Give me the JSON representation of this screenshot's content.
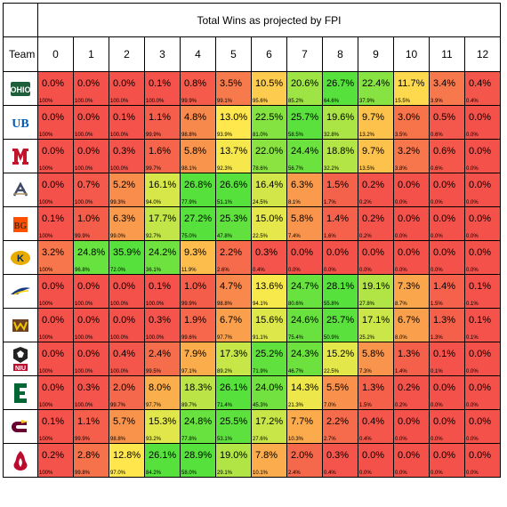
{
  "title": "Total Wins as projected by FPI",
  "team_header": "Team",
  "win_columns": [
    "0",
    "1",
    "2",
    "3",
    "4",
    "5",
    "6",
    "7",
    "8",
    "9",
    "10",
    "11",
    "12"
  ],
  "teams": [
    {
      "name": "Ohio",
      "logo": "ohio-logo-icon",
      "probs": [
        "0.0%",
        "0.0%",
        "0.0%",
        "0.1%",
        "0.8%",
        "3.5%",
        "10.5%",
        "20.6%",
        "26.7%",
        "22.4%",
        "11.7%",
        "3.4%",
        "0.4%"
      ],
      "cum": [
        "100%",
        "100.0%",
        "100.0%",
        "100.0%",
        "99.9%",
        "99.1%",
        "95.6%",
        "85.2%",
        "64.6%",
        "37.9%",
        "15.5%",
        "3.9%",
        "0.4%"
      ]
    },
    {
      "name": "Buffalo",
      "logo": "buffalo-logo-icon",
      "probs": [
        "0.0%",
        "0.0%",
        "0.1%",
        "1.1%",
        "4.8%",
        "13.0%",
        "22.5%",
        "25.7%",
        "19.6%",
        "9.7%",
        "3.0%",
        "0.5%",
        "0.0%"
      ],
      "cum": [
        "100%",
        "100.0%",
        "100.0%",
        "99.9%",
        "98.8%",
        "93.9%",
        "81.0%",
        "58.5%",
        "32.8%",
        "13.2%",
        "3.5%",
        "0.6%",
        "0.0%"
      ]
    },
    {
      "name": "Miami (OH)",
      "logo": "miami-logo-icon",
      "probs": [
        "0.0%",
        "0.0%",
        "0.3%",
        "1.6%",
        "5.8%",
        "13.7%",
        "22.0%",
        "24.4%",
        "18.8%",
        "9.7%",
        "3.2%",
        "0.6%",
        "0.0%"
      ],
      "cum": [
        "100%",
        "100.0%",
        "100.0%",
        "99.7%",
        "98.1%",
        "92.3%",
        "78.6%",
        "56.7%",
        "32.2%",
        "13.5%",
        "3.8%",
        "0.6%",
        "0.0%"
      ]
    },
    {
      "name": "Akron",
      "logo": "akron-logo-icon",
      "probs": [
        "0.0%",
        "0.7%",
        "5.2%",
        "16.1%",
        "26.8%",
        "26.6%",
        "16.4%",
        "6.3%",
        "1.5%",
        "0.2%",
        "0.0%",
        "0.0%",
        "0.0%"
      ],
      "cum": [
        "100%",
        "100.0%",
        "99.3%",
        "94.0%",
        "77.9%",
        "51.1%",
        "24.5%",
        "8.1%",
        "1.7%",
        "0.2%",
        "0.0%",
        "0.0%",
        "0.0%"
      ]
    },
    {
      "name": "Bowling Green",
      "logo": "bowling-green-logo-icon",
      "probs": [
        "0.1%",
        "1.0%",
        "6.3%",
        "17.7%",
        "27.2%",
        "25.3%",
        "15.0%",
        "5.8%",
        "1.4%",
        "0.2%",
        "0.0%",
        "0.0%",
        "0.0%"
      ],
      "cum": [
        "100%",
        "99.9%",
        "99.0%",
        "92.7%",
        "75.0%",
        "47.8%",
        "22.5%",
        "7.4%",
        "1.6%",
        "0.2%",
        "0.0%",
        "0.0%",
        "0.0%"
      ]
    },
    {
      "name": "Kent State",
      "logo": "kent-state-logo-icon",
      "probs": [
        "3.2%",
        "24.8%",
        "35.9%",
        "24.2%",
        "9.3%",
        "2.2%",
        "0.3%",
        "0.0%",
        "0.0%",
        "0.0%",
        "0.0%",
        "0.0%",
        "0.0%"
      ],
      "cum": [
        "100%",
        "96.8%",
        "72.0%",
        "36.1%",
        "11.9%",
        "2.6%",
        "0.4%",
        "0.0%",
        "0.0%",
        "0.0%",
        "0.0%",
        "0.0%",
        "0.0%"
      ]
    },
    {
      "name": "Toledo",
      "logo": "toledo-logo-icon",
      "probs": [
        "0.0%",
        "0.0%",
        "0.0%",
        "0.1%",
        "1.0%",
        "4.7%",
        "13.6%",
        "24.7%",
        "28.1%",
        "19.1%",
        "7.3%",
        "1.4%",
        "0.1%"
      ],
      "cum": [
        "100%",
        "100.0%",
        "100.0%",
        "100.0%",
        "99.9%",
        "98.8%",
        "94.1%",
        "80.6%",
        "55.8%",
        "27.8%",
        "8.7%",
        "1.5%",
        "0.1%"
      ]
    },
    {
      "name": "Western Michigan",
      "logo": "western-michigan-logo-icon",
      "probs": [
        "0.0%",
        "0.0%",
        "0.0%",
        "0.3%",
        "1.9%",
        "6.7%",
        "15.6%",
        "24.6%",
        "25.7%",
        "17.1%",
        "6.7%",
        "1.3%",
        "0.1%"
      ],
      "cum": [
        "100%",
        "100.0%",
        "100.0%",
        "100.0%",
        "99.6%",
        "97.7%",
        "91.1%",
        "75.4%",
        "50.9%",
        "25.2%",
        "8.0%",
        "1.3%",
        "0.1%"
      ]
    },
    {
      "name": "Northern Illinois",
      "logo": "northern-illinois-logo-icon",
      "probs": [
        "0.0%",
        "0.0%",
        "0.4%",
        "2.4%",
        "7.9%",
        "17.3%",
        "25.2%",
        "24.3%",
        "15.2%",
        "5.8%",
        "1.3%",
        "0.1%",
        "0.0%"
      ],
      "cum": [
        "100%",
        "100.0%",
        "100.0%",
        "99.5%",
        "97.1%",
        "89.2%",
        "71.9%",
        "46.7%",
        "22.5%",
        "7.3%",
        "1.4%",
        "0.1%",
        "0.0%"
      ]
    },
    {
      "name": "Eastern Michigan",
      "logo": "eastern-michigan-logo-icon",
      "probs": [
        "0.0%",
        "0.3%",
        "2.0%",
        "8.0%",
        "18.3%",
        "26.1%",
        "24.0%",
        "14.3%",
        "5.5%",
        "1.3%",
        "0.2%",
        "0.0%",
        "0.0%"
      ],
      "cum": [
        "100%",
        "100.0%",
        "99.7%",
        "97.7%",
        "89.7%",
        "71.4%",
        "45.3%",
        "21.3%",
        "7.0%",
        "1.5%",
        "0.2%",
        "0.0%",
        "0.0%"
      ]
    },
    {
      "name": "Central Michigan",
      "logo": "central-michigan-logo-icon",
      "probs": [
        "0.1%",
        "1.1%",
        "5.7%",
        "15.3%",
        "24.8%",
        "25.5%",
        "17.2%",
        "7.7%",
        "2.2%",
        "0.4%",
        "0.0%",
        "0.0%",
        "0.0%"
      ],
      "cum": [
        "100%",
        "99.9%",
        "98.8%",
        "93.2%",
        "77.8%",
        "53.1%",
        "27.6%",
        "10.3%",
        "2.7%",
        "0.4%",
        "0.0%",
        "0.0%",
        "0.0%"
      ]
    },
    {
      "name": "Ball State",
      "logo": "ball-state-logo-icon",
      "probs": [
        "0.2%",
        "2.8%",
        "12.8%",
        "26.1%",
        "28.9%",
        "19.0%",
        "7.8%",
        "2.0%",
        "0.3%",
        "0.0%",
        "0.0%",
        "0.0%",
        "0.0%"
      ],
      "cum": [
        "100%",
        "99.8%",
        "97.0%",
        "84.2%",
        "58.0%",
        "29.1%",
        "10.1%",
        "2.4%",
        "0.4%",
        "0.0%",
        "0.0%",
        "0.0%",
        "0.0%"
      ]
    }
  ],
  "colors": {
    "low": "#f4514b",
    "mid": "#ffe84d",
    "high": "#57e13d",
    "border": "#000000"
  }
}
